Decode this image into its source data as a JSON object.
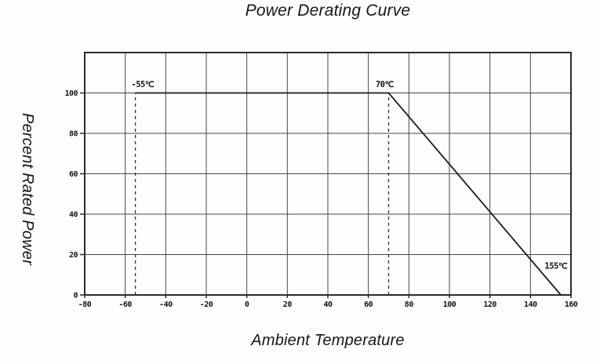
{
  "chart_data": {
    "type": "line",
    "title": "Power Derating Curve",
    "xlabel": "Ambient Temperature",
    "ylabel": "Percent Rated Power",
    "xlim": [
      -80,
      160
    ],
    "ylim": [
      0,
      120
    ],
    "xticks": [
      -80,
      -60,
      -40,
      -20,
      0,
      20,
      40,
      60,
      80,
      100,
      120,
      140,
      160
    ],
    "yticks": [
      0,
      20,
      40,
      60,
      80,
      100
    ],
    "grid": true,
    "legend": "none",
    "colors": {
      "line": "#1c1c1c",
      "grid": "#474747",
      "border": "#2b2b2b",
      "guide": "#333333",
      "tick_text": "#141414"
    },
    "series": [
      {
        "name": "derating-curve",
        "points": [
          [
            -55,
            100
          ],
          [
            70,
            100
          ],
          [
            155,
            0
          ]
        ]
      }
    ],
    "guides": [
      {
        "type": "vline-dashed",
        "x": -55,
        "y0": 0,
        "y1": 100
      },
      {
        "type": "vline-dashed",
        "x": 70,
        "y0": 0,
        "y1": 100
      }
    ],
    "annotations": [
      {
        "text": "-55℃",
        "x": -57,
        "y": 103,
        "anchor": "start"
      },
      {
        "text": "70℃",
        "x": 68,
        "y": 103,
        "anchor": "middle"
      },
      {
        "text": "155℃",
        "x": 147,
        "y": 13,
        "anchor": "start"
      }
    ]
  }
}
